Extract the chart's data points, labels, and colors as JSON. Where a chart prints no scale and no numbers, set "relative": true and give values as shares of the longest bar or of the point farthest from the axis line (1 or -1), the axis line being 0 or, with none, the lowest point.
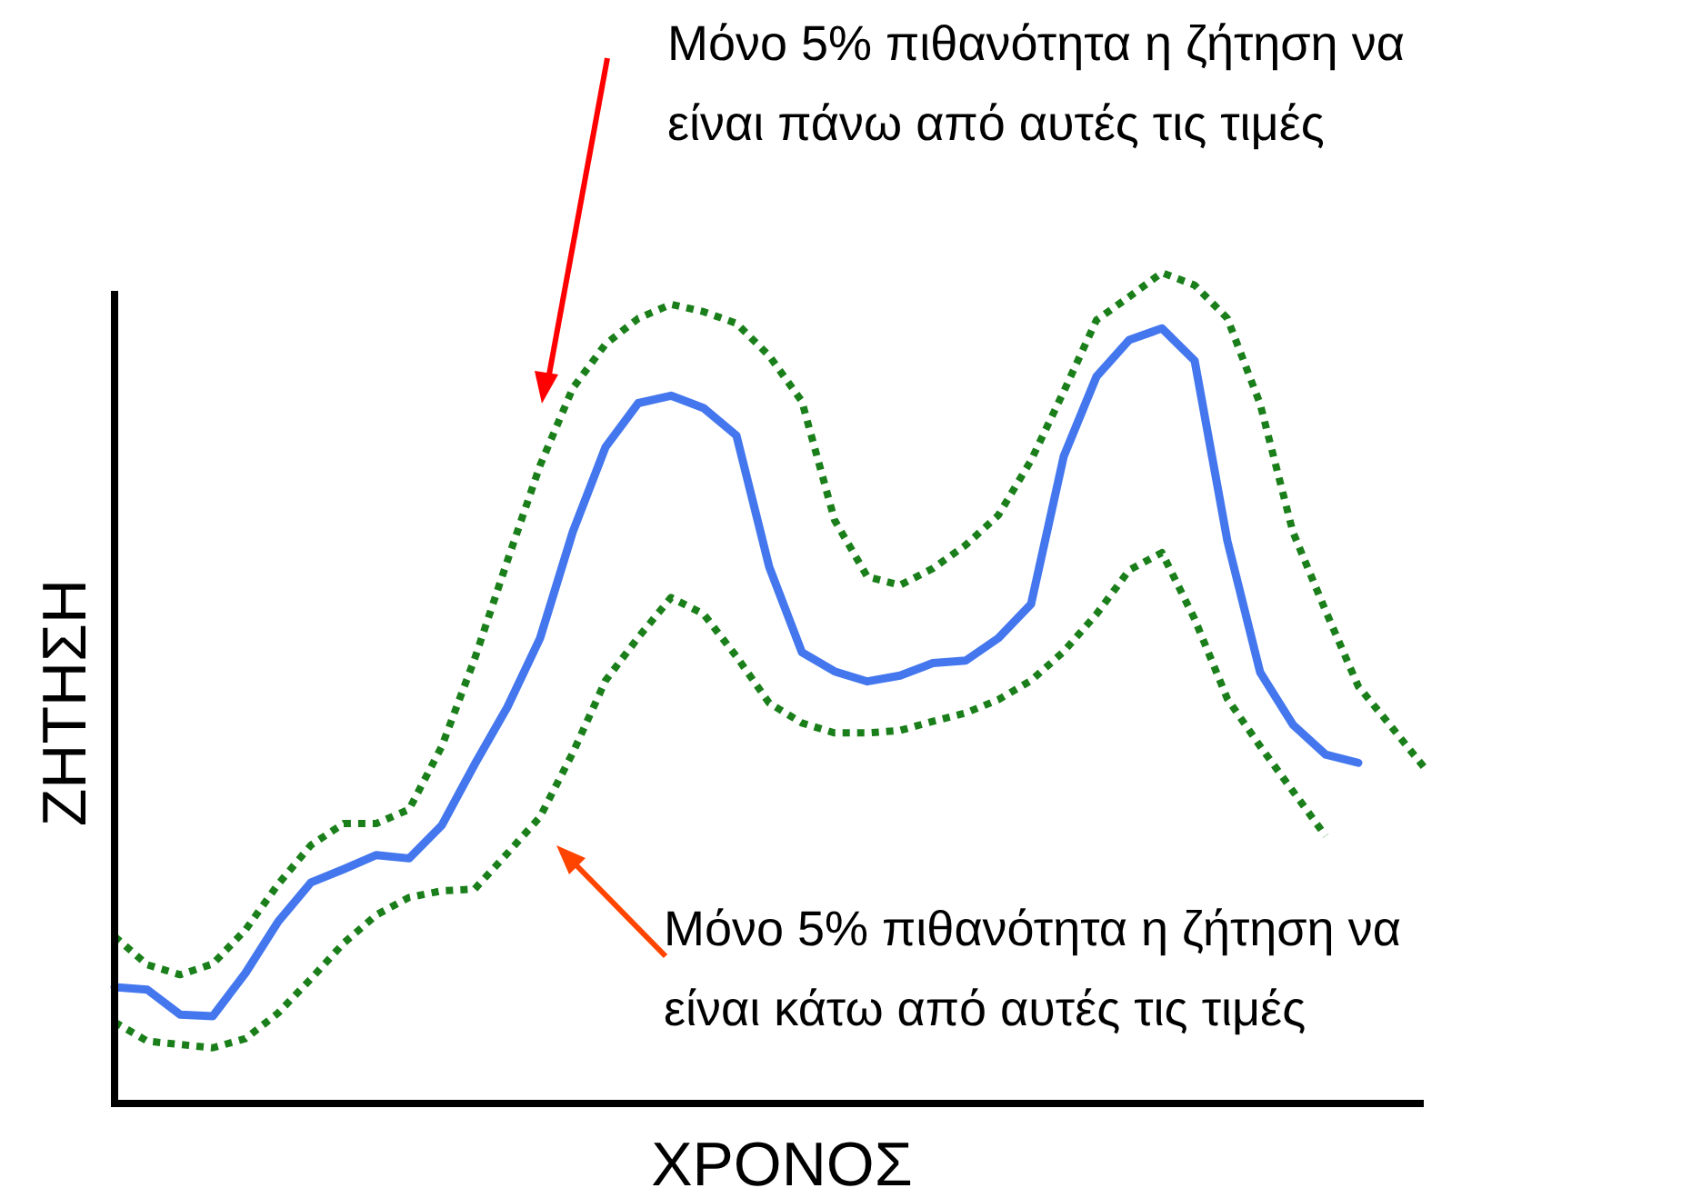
{
  "chart_data": {
    "type": "line",
    "relative": true,
    "xlabel": "ΧΡΟΝΟΣ",
    "ylabel": "ΖΗΤΗΣΗ",
    "annotations": [
      "Μόνο 5% πιθανότητα η ζήτηση να\nείναι πάνω από αυτές τις τιμές",
      "Μόνο 5% πιθανότητα η ζήτηση να\nείναι κάτω από αυτές τις τιμές"
    ],
    "categories": [
      null,
      null,
      null,
      null,
      null,
      null,
      null,
      null,
      null,
      null,
      null,
      null,
      null,
      null,
      null,
      null,
      null,
      null,
      null,
      null,
      null,
      null,
      null,
      null,
      null,
      null,
      null,
      null,
      null,
      null,
      null,
      null,
      null,
      null,
      null,
      null,
      null,
      null,
      null,
      null,
      null
    ],
    "series": [
      {
        "color": "#1a7f1a",
        "line_style": "dotted",
        "values": [
          0.201,
          0.167,
          0.155,
          0.168,
          0.209,
          0.264,
          0.311,
          0.337,
          0.337,
          0.354,
          0.43,
          0.535,
          0.653,
          0.768,
          0.861,
          0.914,
          0.945,
          0.962,
          0.953,
          0.939,
          0.9,
          0.845,
          0.702,
          0.634,
          0.624,
          0.644,
          0.672,
          0.708,
          0.774,
          0.857,
          0.943,
          0.971,
          1.0,
          0.985,
          0.945,
          0.842,
          0.688,
          0.593,
          0.502,
          0.454,
          0.405
        ]
      },
      {
        "color": "#4477ee",
        "line_style": "solid",
        "values": [
          0.14,
          0.137,
          0.107,
          0.105,
          0.157,
          0.219,
          0.266,
          0.282,
          0.299,
          0.295,
          0.335,
          0.408,
          0.477,
          0.56,
          0.688,
          0.79,
          0.843,
          0.852,
          0.837,
          0.804,
          0.646,
          0.543,
          0.52,
          0.508,
          0.515,
          0.53,
          0.533,
          0.56,
          0.601,
          0.779,
          0.875,
          0.919,
          0.933,
          0.894,
          0.677,
          0.519,
          0.456,
          0.42,
          0.41,
          null,
          null
        ]
      },
      {
        "color": "#1a7f1a",
        "line_style": "dotted",
        "values": [
          0.098,
          0.075,
          0.071,
          0.067,
          0.078,
          0.109,
          0.15,
          0.193,
          0.227,
          0.248,
          0.256,
          0.258,
          0.301,
          0.345,
          0.422,
          0.509,
          0.561,
          0.609,
          0.589,
          0.538,
          0.482,
          0.458,
          0.446,
          0.446,
          0.449,
          0.46,
          0.47,
          0.486,
          0.509,
          0.544,
          0.589,
          0.642,
          0.663,
          0.583,
          0.487,
          0.43,
          0.376,
          0.322,
          null,
          null,
          null
        ]
      }
    ]
  }
}
